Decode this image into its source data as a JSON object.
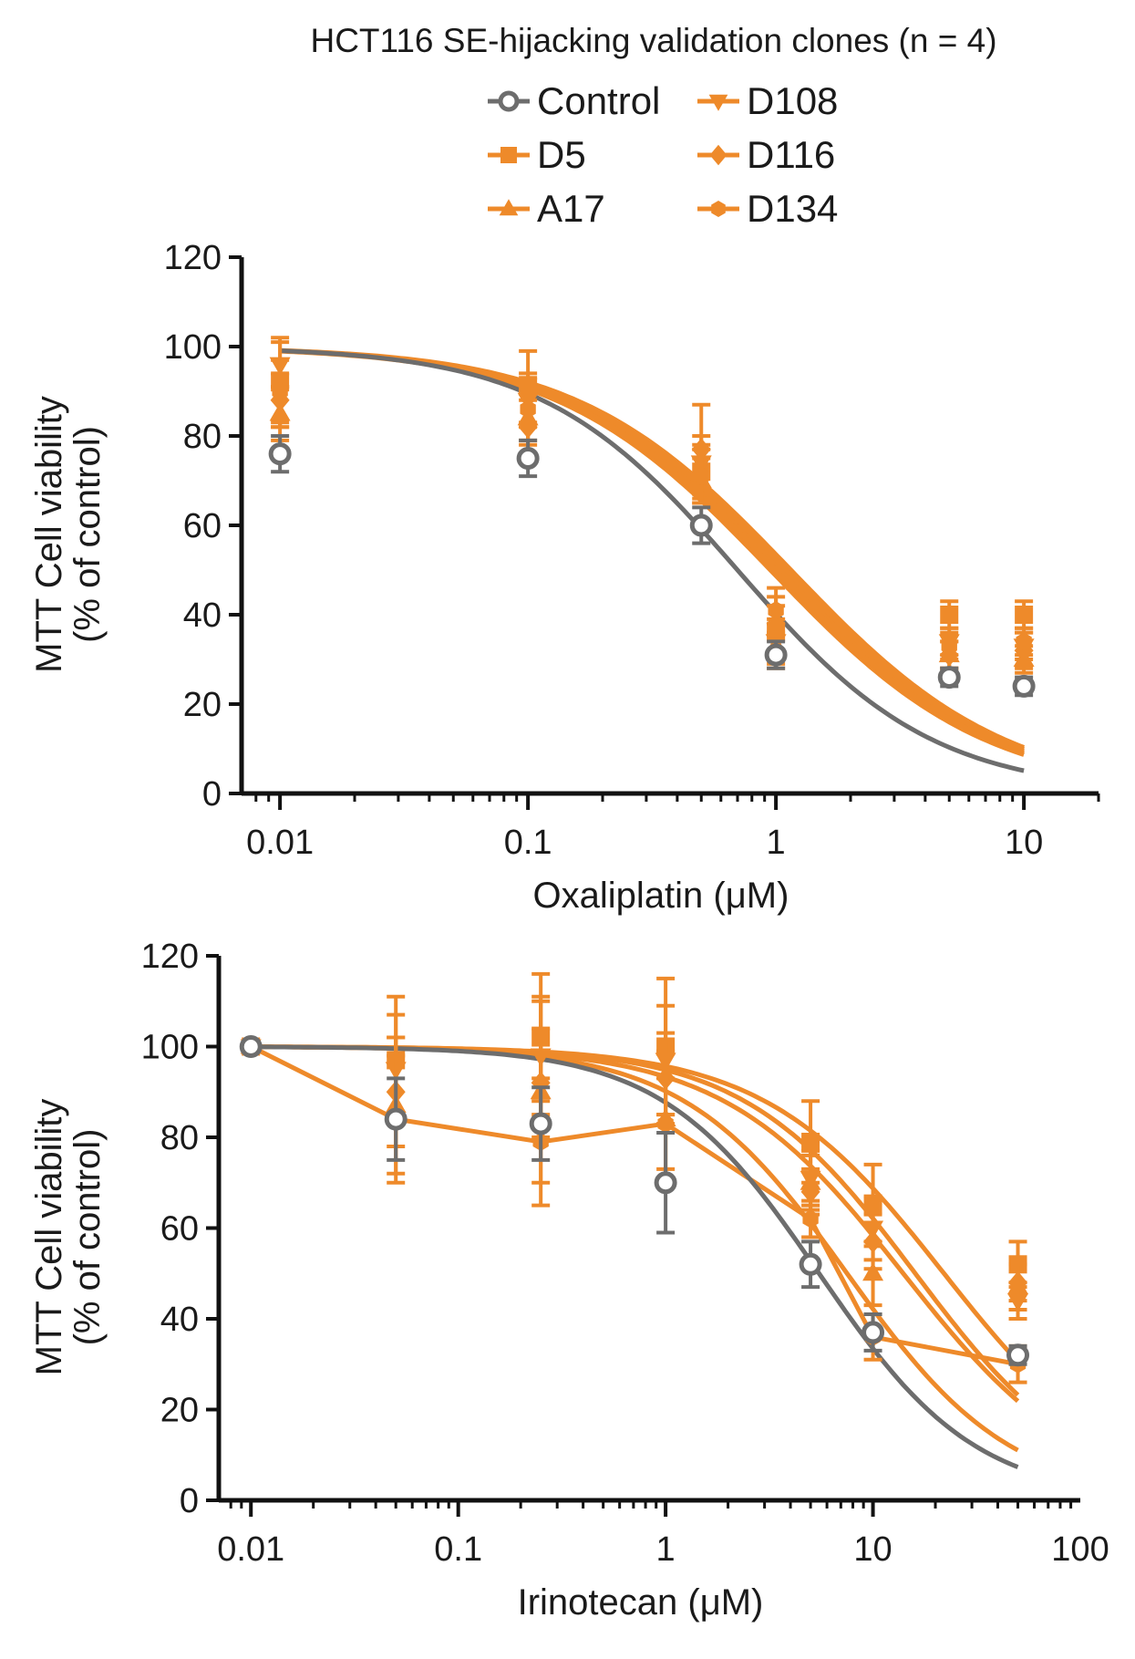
{
  "figure": {
    "title": "HCT116 SE-hijacking validation clones (n = 4)",
    "legend": [
      {
        "name": "Control",
        "marker": "circle-open",
        "color": "#6d6d6d"
      },
      {
        "name": "D5",
        "marker": "square",
        "color": "#ee8a2a"
      },
      {
        "name": "A17",
        "marker": "triangle-up",
        "color": "#ee8a2a"
      },
      {
        "name": "D108",
        "marker": "triangle-down",
        "color": "#ee8a2a"
      },
      {
        "name": "D116",
        "marker": "diamond",
        "color": "#ee8a2a"
      },
      {
        "name": "D134",
        "marker": "hexagon",
        "color": "#ee8a2a"
      }
    ],
    "colors": {
      "control": "#6d6d6d",
      "clones": "#ee8a2a",
      "axis": "#111111"
    }
  },
  "chart_data": [
    {
      "type": "scatter",
      "title": "",
      "xlabel": "Oxaliplatin (μM)",
      "ylabel_line1": "MTT Cell viability",
      "ylabel_line2": "(% of control)",
      "xscale": "log",
      "xlim": [
        0.01,
        20
      ],
      "ylim": [
        0,
        120
      ],
      "xticks": [
        0.01,
        0.1,
        1,
        10
      ],
      "xtick_labels": [
        "0.01",
        "0.1",
        "1",
        "10"
      ],
      "yticks": [
        0,
        20,
        40,
        60,
        80,
        100,
        120
      ],
      "ytick_labels": [
        "0",
        "20",
        "40",
        "60",
        "80",
        "100",
        "120"
      ],
      "x": [
        0.01,
        0.1,
        0.5,
        1,
        5,
        10
      ],
      "series": [
        {
          "name": "Control",
          "values": [
            76,
            75,
            60,
            31,
            26,
            24
          ],
          "errors": [
            4,
            4,
            4,
            3,
            2,
            2
          ],
          "fit_ec50": 0.7,
          "fit_hill": 1.1,
          "lines_connect": false
        },
        {
          "name": "D5",
          "values": [
            92,
            91,
            72,
            36,
            40,
            40
          ],
          "errors": [
            10,
            8,
            6,
            6,
            3,
            3
          ],
          "fit_ec50": 1.05,
          "fit_hill": 1.0,
          "lines_connect": false
        },
        {
          "name": "A17",
          "values": [
            85,
            84,
            70,
            33,
            31,
            30
          ],
          "errors": [
            6,
            6,
            5,
            5,
            3,
            3
          ],
          "fit_ec50": 0.95,
          "fit_hill": 1.0,
          "lines_connect": false
        },
        {
          "name": "D108",
          "values": [
            96,
            88,
            74,
            34,
            34,
            33
          ],
          "errors": [
            5,
            6,
            6,
            5,
            3,
            3
          ],
          "fit_ec50": 1.15,
          "fit_hill": 1.0,
          "lines_connect": false
        },
        {
          "name": "D116",
          "values": [
            88,
            82,
            77,
            38,
            31,
            32
          ],
          "errors": [
            6,
            6,
            10,
            6,
            3,
            4
          ],
          "fit_ec50": 1.0,
          "fit_hill": 1.0,
          "lines_connect": false
        },
        {
          "name": "D134",
          "values": [
            90,
            86,
            71,
            41,
            33,
            34
          ],
          "errors": [
            7,
            7,
            6,
            5,
            3,
            3
          ],
          "fit_ec50": 1.1,
          "fit_hill": 1.0,
          "lines_connect": false
        }
      ]
    },
    {
      "type": "scatter",
      "title": "",
      "xlabel": "Irinotecan (μM)",
      "ylabel_line1": "MTT Cell viability",
      "ylabel_line2": "(% of control)",
      "xscale": "log",
      "xlim": [
        0.01,
        100
      ],
      "ylim": [
        0,
        120
      ],
      "xticks": [
        0.01,
        0.1,
        1,
        10,
        100
      ],
      "xtick_labels": [
        "0.01",
        "0.1",
        "1",
        "10",
        "100"
      ],
      "yticks": [
        0,
        20,
        40,
        60,
        80,
        100,
        120
      ],
      "ytick_labels": [
        "0",
        "20",
        "40",
        "60",
        "80",
        "100",
        "120"
      ],
      "x": [
        0.01,
        0.05,
        0.25,
        1,
        5,
        10,
        50
      ],
      "series": [
        {
          "name": "Control",
          "values": [
            100,
            84,
            83,
            70,
            52,
            37,
            32
          ],
          "errors": [
            1,
            9,
            8,
            11,
            5,
            4,
            2
          ],
          "fit_ec50": 5.5,
          "fit_hill": 1.15,
          "lines_connect": false
        },
        {
          "name": "D5",
          "values": [
            100,
            97,
            102,
            100,
            79,
            65,
            52
          ],
          "errors": [
            1,
            14,
            14,
            15,
            9,
            9,
            5
          ],
          "fit_ec50": 22,
          "fit_hill": 1.0,
          "lines_connect": false
        },
        {
          "name": "A17",
          "values": [
            100,
            87,
            90,
            84,
            70,
            50,
            47
          ],
          "errors": [
            1,
            15,
            20,
            15,
            6,
            7,
            5
          ],
          "fit_ec50": 14,
          "fit_hill": 1.0,
          "lines_connect": false
        },
        {
          "name": "D108",
          "values": [
            100,
            95,
            98,
            97,
            71,
            60,
            44
          ],
          "errors": [
            1,
            12,
            13,
            12,
            6,
            7,
            4
          ],
          "fit_ec50": 16,
          "fit_hill": 1.05,
          "lines_connect": false
        },
        {
          "name": "D116",
          "values": [
            100,
            90,
            92,
            93,
            68,
            57,
            48
          ],
          "errors": [
            1,
            12,
            12,
            10,
            5,
            6,
            4
          ],
          "fit_ec50": 7.5,
          "fit_hill": 1.1,
          "lines_connect": false
        },
        {
          "name": "D134",
          "values": [
            100,
            84,
            79,
            83,
            62,
            36,
            30
          ],
          "errors": [
            1,
            14,
            14,
            10,
            4,
            5,
            4
          ],
          "fit_ec50": 0,
          "fit_hill": 0,
          "lines_connect": true
        }
      ]
    }
  ]
}
